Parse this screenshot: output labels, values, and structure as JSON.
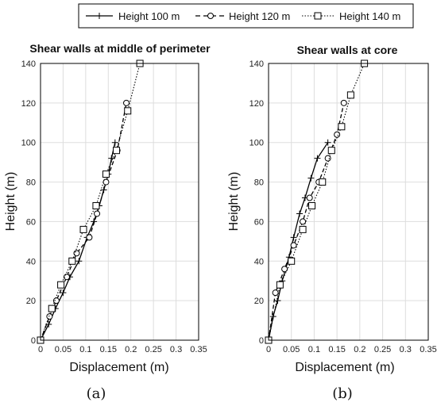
{
  "legend": {
    "entries": [
      "Height 100 m",
      "Height 120 m",
      "Height 140 m"
    ]
  },
  "chart_data": [
    {
      "type": "line",
      "title": "Shear walls at middle of perimeter",
      "caption": "(a)",
      "xlabel": "Displacement (m)",
      "ylabel": "Height (m)",
      "xlim": [
        0,
        0.35
      ],
      "ylim": [
        0,
        140
      ],
      "xticks": [
        "0",
        "0.05",
        "0.1",
        "0.15",
        "0.2",
        "0.25",
        "0.3",
        "0.35"
      ],
      "yticks": [
        "0",
        "20",
        "40",
        "60",
        "80",
        "100",
        "120",
        "140"
      ],
      "grid": true,
      "legend_position": "top",
      "series": [
        {
          "name": "Height 100 m",
          "line": "solid",
          "marker": "plus",
          "points": [
            [
              0,
              0
            ],
            [
              0.018,
              8
            ],
            [
              0.033,
              16
            ],
            [
              0.05,
              24
            ],
            [
              0.065,
              32
            ],
            [
              0.085,
              40
            ],
            [
              0.103,
              52
            ],
            [
              0.118,
              60
            ],
            [
              0.13,
              68
            ],
            [
              0.14,
              76
            ],
            [
              0.15,
              84
            ],
            [
              0.157,
              92
            ],
            [
              0.165,
              100
            ]
          ]
        },
        {
          "name": "Height 120 m",
          "line": "dashed",
          "marker": "circle",
          "points": [
            [
              0,
              0
            ],
            [
              0.02,
              12
            ],
            [
              0.035,
              20
            ],
            [
              0.058,
              32
            ],
            [
              0.08,
              44
            ],
            [
              0.108,
              52
            ],
            [
              0.125,
              64
            ],
            [
              0.145,
              80
            ],
            [
              0.17,
              96
            ],
            [
              0.19,
              120
            ]
          ]
        },
        {
          "name": "Height 140 m",
          "line": "dotted",
          "marker": "square",
          "points": [
            [
              0,
              0
            ],
            [
              0.025,
              16
            ],
            [
              0.045,
              28
            ],
            [
              0.07,
              40
            ],
            [
              0.095,
              56
            ],
            [
              0.123,
              68
            ],
            [
              0.145,
              84
            ],
            [
              0.168,
              96
            ],
            [
              0.193,
              116
            ],
            [
              0.22,
              140
            ]
          ]
        }
      ]
    },
    {
      "type": "line",
      "title": "Shear walls at core",
      "caption": "(b)",
      "xlabel": "Displacement (m)",
      "ylabel": "Height (m)",
      "xlim": [
        0,
        0.35
      ],
      "ylim": [
        0,
        140
      ],
      "xticks": [
        "0",
        "0.05",
        "0.1",
        "0.15",
        "0.2",
        "0.25",
        "0.3",
        "0.35"
      ],
      "yticks": [
        "0",
        "20",
        "40",
        "60",
        "80",
        "100",
        "120",
        "140"
      ],
      "grid": true,
      "legend_position": "top",
      "series": [
        {
          "name": "Height 100 m",
          "line": "solid",
          "marker": "plus",
          "points": [
            [
              0,
              0
            ],
            [
              0.01,
              12
            ],
            [
              0.02,
              20
            ],
            [
              0.03,
              30
            ],
            [
              0.045,
              42
            ],
            [
              0.055,
              52
            ],
            [
              0.068,
              64
            ],
            [
              0.08,
              72
            ],
            [
              0.093,
              82
            ],
            [
              0.107,
              92
            ],
            [
              0.13,
              100
            ]
          ]
        },
        {
          "name": "Height 120 m",
          "line": "dashed",
          "marker": "circle",
          "points": [
            [
              0,
              0
            ],
            [
              0.015,
              24
            ],
            [
              0.035,
              36
            ],
            [
              0.055,
              48
            ],
            [
              0.075,
              60
            ],
            [
              0.09,
              72
            ],
            [
              0.11,
              80
            ],
            [
              0.13,
              92
            ],
            [
              0.15,
              104
            ],
            [
              0.165,
              120
            ]
          ]
        },
        {
          "name": "Height 140 m",
          "line": "dotted",
          "marker": "square",
          "points": [
            [
              0,
              0
            ],
            [
              0.025,
              28
            ],
            [
              0.05,
              40
            ],
            [
              0.075,
              56
            ],
            [
              0.095,
              68
            ],
            [
              0.118,
              80
            ],
            [
              0.138,
              96
            ],
            [
              0.16,
              108
            ],
            [
              0.18,
              124
            ],
            [
              0.21,
              140
            ]
          ]
        }
      ]
    }
  ]
}
